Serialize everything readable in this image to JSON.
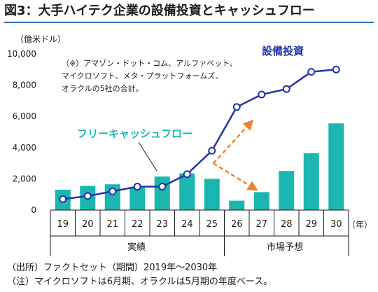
{
  "title": "図3：大手ハイテク企業の設備投資とキャッシュフロー",
  "unit_label": "（億米ドル）",
  "x_unit_label": "（年）",
  "annotation": [
    "（※）アマゾン・ドット・コム、アルファベット、",
    "マイクロソフト、メタ・プラットフォームズ、",
    "オラクルの5社の合計。"
  ],
  "group_labels": [
    "実績",
    "市場予想"
  ],
  "footnotes": [
    "（出所）ファクトセット（期間）2019年～2030年",
    "（注）マイクロソフトは6月期、オラクルは5月期の年度ベース。"
  ],
  "colors": {
    "bar": "#1bb6b0",
    "line": "#2233aa",
    "arrow": "#f0822e",
    "title_rule": "#2e6aa8"
  },
  "chart_data": {
    "type": "bar+line",
    "categories": [
      "19",
      "20",
      "21",
      "22",
      "23",
      "24",
      "25",
      "26",
      "27",
      "28",
      "29",
      "30"
    ],
    "series": [
      {
        "name": "フリーキャッシュフロー",
        "type": "bar",
        "values": [
          1300,
          1550,
          1650,
          1450,
          2150,
          2350,
          2000,
          600,
          1150,
          2500,
          3650,
          5550
        ]
      },
      {
        "name": "設備投資",
        "type": "line",
        "values": [
          700,
          900,
          1200,
          1500,
          1500,
          2300,
          3800,
          6600,
          7400,
          7750,
          8850,
          9000
        ]
      }
    ],
    "ylim": [
      0,
      10000
    ],
    "yticks": [
      0,
      2000,
      4000,
      6000,
      8000,
      10000
    ],
    "ytick_labels": [
      "0",
      "2,000",
      "4,000",
      "6,000",
      "8,000",
      "10,000"
    ],
    "grid": false
  }
}
